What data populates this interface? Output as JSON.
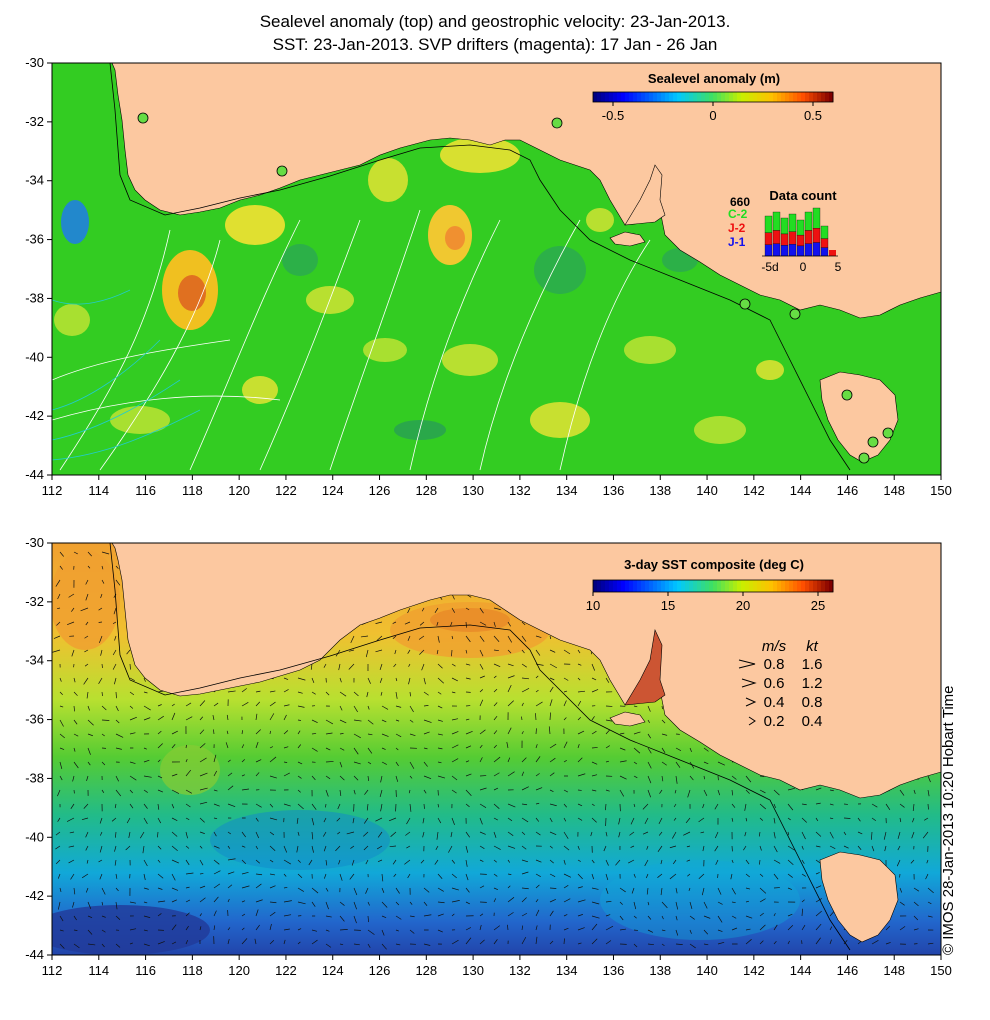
{
  "titles": {
    "line1": "Sealevel anomaly (top) and geostrophic velocity: 23-Jan-2013.",
    "line2": "SST: 23-Jan-2013. SVP drifters (magenta): 17 Jan - 26 Jan"
  },
  "axes": {
    "lon_ticks": [
      112,
      114,
      116,
      118,
      120,
      122,
      124,
      126,
      128,
      130,
      132,
      134,
      136,
      138,
      140,
      142,
      144,
      146,
      148,
      150
    ],
    "lat_ticks": [
      -30,
      -32,
      -34,
      -36,
      -38,
      -40,
      -42,
      -44
    ],
    "lon_range": [
      112,
      150
    ],
    "lat_range": [
      -44,
      -30
    ]
  },
  "top_panel": {
    "colorbar": {
      "title": "Sealevel anomaly (m)",
      "tick_labels": [
        "-0.5",
        "0",
        "0.5"
      ],
      "tick_values": [
        -0.5,
        0,
        0.5
      ],
      "range": [
        -0.6,
        0.6
      ]
    },
    "data_count": {
      "title": "Data count",
      "max_label": "660",
      "missions": [
        {
          "label": "C-2",
          "color": "#22dd22"
        },
        {
          "label": "J-2",
          "color": "#ee1111"
        },
        {
          "label": "J-1",
          "color": "#1111ee"
        }
      ],
      "x_labels": [
        "-5d",
        "0",
        "5"
      ]
    }
  },
  "bottom_panel": {
    "colorbar": {
      "title": "3-day SST composite (deg C)",
      "tick_labels": [
        "10",
        "15",
        "20",
        "25"
      ],
      "tick_values": [
        10,
        15,
        20,
        25
      ],
      "range": [
        10,
        26
      ]
    },
    "velocity_legend": {
      "header_ms": "m/s",
      "header_kt": "kt",
      "rows": [
        {
          "ms": "0.8",
          "kt": "1.6"
        },
        {
          "ms": "0.6",
          "kt": "1.2"
        },
        {
          "ms": "0.4",
          "kt": "0.8"
        },
        {
          "ms": "0.2",
          "kt": "0.4"
        }
      ]
    }
  },
  "colors": {
    "land": "#fcc8a0",
    "ocean_top": "#33cc22",
    "contour": "#ffffff",
    "isobath": "#000000",
    "drifter": "#ff00ff"
  },
  "credit": "© IMOS 28-Jan-2013 10:20 Hobart Time"
}
